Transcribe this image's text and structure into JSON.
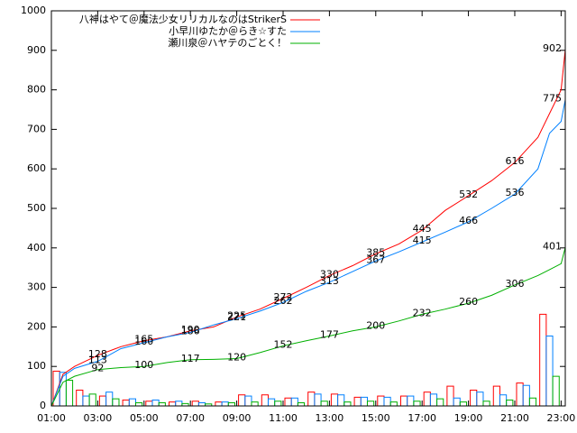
{
  "chart_data": {
    "type": "line",
    "ylim": [
      0,
      1000
    ],
    "yticks": [
      0,
      100,
      200,
      300,
      400,
      500,
      600,
      700,
      800,
      900,
      1000
    ],
    "xlim": [
      1,
      23.18
    ],
    "xticks": [
      {
        "value": 1,
        "label": "01:00"
      },
      {
        "value": 3,
        "label": "03:00"
      },
      {
        "value": 5,
        "label": "05:00"
      },
      {
        "value": 7,
        "label": "07:00"
      },
      {
        "value": 9,
        "label": "09:00"
      },
      {
        "value": 11,
        "label": "11:00"
      },
      {
        "value": 13,
        "label": "13:00"
      },
      {
        "value": 15,
        "label": "15:00"
      },
      {
        "value": 17,
        "label": "17:00"
      },
      {
        "value": 19,
        "label": "19:00"
      },
      {
        "value": 21,
        "label": "21:00"
      },
      {
        "value": 23,
        "label": "23:00"
      }
    ],
    "legend": "upper left",
    "x": [
      1,
      1.5,
      2,
      3,
      4,
      5,
      6,
      7,
      8,
      9,
      10,
      11,
      12,
      13,
      14,
      15,
      16,
      17,
      18,
      19,
      20,
      21,
      22,
      22.5,
      23,
      23.18
    ],
    "bar_x": [
      1,
      2,
      3,
      4,
      5,
      6,
      7,
      8,
      9,
      10,
      11,
      12,
      13,
      14,
      15,
      16,
      17,
      18,
      19,
      20,
      21,
      22
    ],
    "series": [
      {
        "name": "八神はやて＠魔法少女リリカルなのはStrikerS",
        "color": "#ff0000",
        "values": [
          0,
          80,
          100,
          128,
          150,
          165,
          175,
          190,
          200,
          225,
          245,
          272,
          300,
          330,
          355,
          385,
          410,
          445,
          495,
          532,
          570,
          616,
          680,
          740,
          800,
          902
        ],
        "value_labels": [
          null,
          null,
          null,
          "128",
          null,
          "165",
          null,
          "190",
          null,
          "225",
          null,
          "272",
          null,
          "330",
          null,
          "385",
          null,
          "445",
          null,
          "532",
          null,
          "616",
          null,
          null,
          null,
          "902"
        ],
        "bar_values": [
          88,
          40,
          25,
          15,
          12,
          10,
          12,
          10,
          28,
          28,
          20,
          35,
          30,
          22,
          25,
          25,
          35,
          50,
          40,
          50,
          58,
          232
        ]
      },
      {
        "name": "小早川ゆたか＠らき☆すた",
        "color": "#0080ff",
        "values": [
          0,
          75,
          95,
          113,
          145,
          160,
          175,
          186,
          205,
          221,
          240,
          262,
          290,
          313,
          340,
          367,
          390,
          415,
          440,
          466,
          500,
          536,
          600,
          690,
          720,
          775
        ],
        "value_labels": [
          null,
          null,
          null,
          "113",
          null,
          "160",
          null,
          "186",
          null,
          "221",
          null,
          "262",
          null,
          "313",
          null,
          "367",
          null,
          "415",
          null,
          "466",
          null,
          "536",
          null,
          null,
          null,
          "775"
        ],
        "bar_values": [
          85,
          25,
          35,
          18,
          15,
          12,
          8,
          10,
          25,
          18,
          20,
          30,
          28,
          22,
          22,
          25,
          30,
          20,
          35,
          28,
          52,
          177
        ]
      },
      {
        "name": "瀬川泉＠ハヤテのごとく！",
        "color": "#00b000",
        "values": [
          0,
          60,
          75,
          92,
          97,
          100,
          110,
          117,
          118,
          120,
          135,
          152,
          165,
          177,
          190,
          200,
          215,
          232,
          245,
          260,
          280,
          306,
          330,
          345,
          360,
          401
        ],
        "value_labels": [
          null,
          null,
          null,
          "92",
          null,
          "100",
          null,
          "117",
          null,
          "120",
          null,
          "152",
          null,
          "177",
          null,
          "200",
          null,
          "232",
          null,
          "260",
          null,
          "306",
          null,
          null,
          null,
          "401"
        ],
        "bar_values": [
          65,
          30,
          18,
          8,
          8,
          6,
          5,
          8,
          10,
          12,
          8,
          12,
          10,
          12,
          10,
          12,
          18,
          10,
          12,
          15,
          20,
          75
        ]
      }
    ]
  }
}
